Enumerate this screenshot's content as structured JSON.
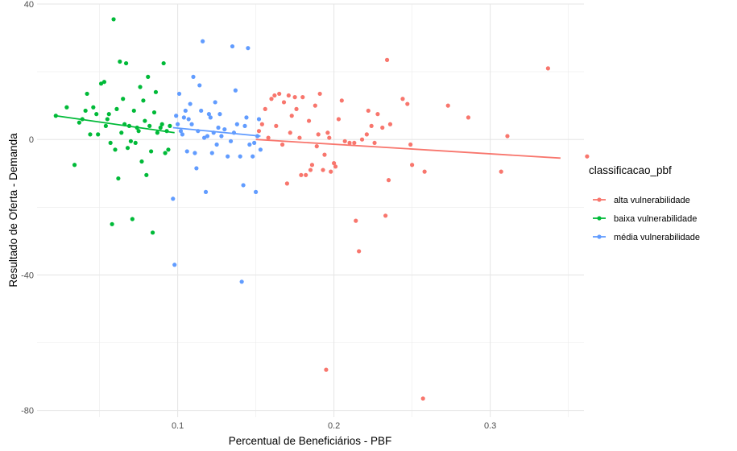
{
  "chart_data": {
    "type": "scatter",
    "title": "",
    "xlabel": "Percentual de Beneficiários - PBF",
    "ylabel": "Resultado de Oferta - Demanda",
    "xlim": [
      0.01,
      0.36
    ],
    "ylim": [
      -82,
      40
    ],
    "x_ticks": [
      0.1,
      0.2,
      0.3
    ],
    "x_tick_labels": [
      "0.1",
      "0.2",
      "0.3"
    ],
    "y_ticks": [
      40,
      0,
      -40,
      -80
    ],
    "y_tick_labels": [
      "40",
      "0",
      "-40",
      "-80"
    ],
    "grid": true,
    "legend": {
      "title": "classificacao_pbf",
      "position": "right"
    },
    "series": [
      {
        "name": "alta vulnerabilidade",
        "color": "#F8766D",
        "trend": {
          "x": [
            0.15,
            0.345
          ],
          "y": [
            0.0,
            -5.5
          ]
        },
        "points": [
          [
            0.152,
            2.5
          ],
          [
            0.154,
            4.5
          ],
          [
            0.156,
            9.0
          ],
          [
            0.158,
            0.5
          ],
          [
            0.16,
            12.0
          ],
          [
            0.162,
            13.0
          ],
          [
            0.163,
            4.0
          ],
          [
            0.165,
            13.5
          ],
          [
            0.167,
            -1.5
          ],
          [
            0.168,
            11.0
          ],
          [
            0.17,
            -13.0
          ],
          [
            0.171,
            13.0
          ],
          [
            0.172,
            2.0
          ],
          [
            0.173,
            7.0
          ],
          [
            0.175,
            12.5
          ],
          [
            0.176,
            9.0
          ],
          [
            0.178,
            0.5
          ],
          [
            0.179,
            -10.5
          ],
          [
            0.18,
            12.5
          ],
          [
            0.182,
            -10.5
          ],
          [
            0.184,
            5.5
          ],
          [
            0.185,
            -9.0
          ],
          [
            0.186,
            -7.5
          ],
          [
            0.188,
            10.0
          ],
          [
            0.189,
            -2.0
          ],
          [
            0.19,
            1.5
          ],
          [
            0.191,
            13.5
          ],
          [
            0.193,
            -9.0
          ],
          [
            0.194,
            -4.5
          ],
          [
            0.195,
            -68.0
          ],
          [
            0.196,
            2.0
          ],
          [
            0.197,
            0.5
          ],
          [
            0.198,
            -9.5
          ],
          [
            0.2,
            -7.0
          ],
          [
            0.201,
            -8.0
          ],
          [
            0.203,
            6.0
          ],
          [
            0.205,
            11.5
          ],
          [
            0.207,
            -0.5
          ],
          [
            0.21,
            -1.0
          ],
          [
            0.213,
            -1.0
          ],
          [
            0.214,
            -24.0
          ],
          [
            0.216,
            -33.0
          ],
          [
            0.218,
            0.0
          ],
          [
            0.221,
            1.5
          ],
          [
            0.222,
            8.5
          ],
          [
            0.224,
            4.0
          ],
          [
            0.226,
            -1.0
          ],
          [
            0.228,
            7.5
          ],
          [
            0.231,
            3.5
          ],
          [
            0.233,
            -22.5
          ],
          [
            0.234,
            23.5
          ],
          [
            0.235,
            -12.0
          ],
          [
            0.236,
            4.5
          ],
          [
            0.244,
            12.0
          ],
          [
            0.247,
            10.5
          ],
          [
            0.249,
            -1.5
          ],
          [
            0.25,
            -7.5
          ],
          [
            0.257,
            -76.5
          ],
          [
            0.258,
            -9.5
          ],
          [
            0.273,
            10.0
          ],
          [
            0.286,
            6.5
          ],
          [
            0.307,
            -9.5
          ],
          [
            0.311,
            1.0
          ],
          [
            0.337,
            21.0
          ],
          [
            0.362,
            -5.0
          ]
        ]
      },
      {
        "name": "baixa vulnerabilidade",
        "color": "#00BA38",
        "trend": {
          "x": [
            0.022,
            0.098
          ],
          "y": [
            7.0,
            2.0
          ]
        },
        "points": [
          [
            0.022,
            7.0
          ],
          [
            0.029,
            9.5
          ],
          [
            0.034,
            -7.5
          ],
          [
            0.037,
            5.0
          ],
          [
            0.039,
            6.0
          ],
          [
            0.041,
            8.5
          ],
          [
            0.042,
            13.5
          ],
          [
            0.044,
            1.5
          ],
          [
            0.046,
            9.5
          ],
          [
            0.048,
            7.5
          ],
          [
            0.049,
            1.5
          ],
          [
            0.051,
            16.5
          ],
          [
            0.053,
            17.0
          ],
          [
            0.054,
            4.0
          ],
          [
            0.055,
            6.0
          ],
          [
            0.056,
            7.5
          ],
          [
            0.057,
            -1.0
          ],
          [
            0.058,
            -25.0
          ],
          [
            0.059,
            35.5
          ],
          [
            0.06,
            -3.0
          ],
          [
            0.061,
            9.0
          ],
          [
            0.062,
            -11.5
          ],
          [
            0.063,
            23.0
          ],
          [
            0.064,
            2.0
          ],
          [
            0.065,
            12.0
          ],
          [
            0.066,
            4.5
          ],
          [
            0.067,
            22.5
          ],
          [
            0.068,
            -2.5
          ],
          [
            0.069,
            4.0
          ],
          [
            0.07,
            -0.5
          ],
          [
            0.071,
            -23.5
          ],
          [
            0.072,
            8.5
          ],
          [
            0.073,
            -1.0
          ],
          [
            0.074,
            3.5
          ],
          [
            0.075,
            2.5
          ],
          [
            0.076,
            15.5
          ],
          [
            0.077,
            -6.5
          ],
          [
            0.078,
            11.5
          ],
          [
            0.079,
            5.5
          ],
          [
            0.08,
            -10.5
          ],
          [
            0.081,
            18.5
          ],
          [
            0.082,
            4.0
          ],
          [
            0.083,
            -3.5
          ],
          [
            0.084,
            -27.5
          ],
          [
            0.085,
            8.0
          ],
          [
            0.086,
            14.0
          ],
          [
            0.087,
            2.0
          ],
          [
            0.089,
            3.5
          ],
          [
            0.09,
            4.5
          ],
          [
            0.091,
            22.5
          ],
          [
            0.092,
            -4.0
          ],
          [
            0.093,
            2.5
          ],
          [
            0.094,
            -3.0
          ],
          [
            0.095,
            4.0
          ]
        ]
      },
      {
        "name": "média vulnerabilidade",
        "color": "#619CFF",
        "trend": {
          "x": [
            0.097,
            0.153
          ],
          "y": [
            3.5,
            1.0
          ]
        },
        "points": [
          [
            0.097,
            -17.5
          ],
          [
            0.098,
            -37.0
          ],
          [
            0.099,
            7.0
          ],
          [
            0.1,
            4.5
          ],
          [
            0.101,
            13.5
          ],
          [
            0.102,
            2.5
          ],
          [
            0.103,
            1.5
          ],
          [
            0.104,
            6.5
          ],
          [
            0.105,
            8.5
          ],
          [
            0.106,
            -3.5
          ],
          [
            0.107,
            6.0
          ],
          [
            0.108,
            10.5
          ],
          [
            0.109,
            4.5
          ],
          [
            0.11,
            18.5
          ],
          [
            0.111,
            -4.0
          ],
          [
            0.112,
            -8.5
          ],
          [
            0.113,
            2.5
          ],
          [
            0.114,
            16.0
          ],
          [
            0.115,
            8.5
          ],
          [
            0.116,
            29.0
          ],
          [
            0.117,
            0.5
          ],
          [
            0.118,
            -15.5
          ],
          [
            0.119,
            1.0
          ],
          [
            0.12,
            7.5
          ],
          [
            0.121,
            6.5
          ],
          [
            0.122,
            -4.0
          ],
          [
            0.123,
            2.0
          ],
          [
            0.124,
            11.0
          ],
          [
            0.125,
            -1.5
          ],
          [
            0.126,
            3.5
          ],
          [
            0.127,
            7.5
          ],
          [
            0.128,
            1.0
          ],
          [
            0.13,
            3.0
          ],
          [
            0.132,
            -5.0
          ],
          [
            0.134,
            -0.5
          ],
          [
            0.135,
            27.5
          ],
          [
            0.136,
            2.0
          ],
          [
            0.137,
            14.5
          ],
          [
            0.138,
            4.5
          ],
          [
            0.14,
            -5.0
          ],
          [
            0.141,
            -42.0
          ],
          [
            0.142,
            -13.5
          ],
          [
            0.143,
            4.0
          ],
          [
            0.144,
            6.5
          ],
          [
            0.145,
            27.0
          ],
          [
            0.146,
            -1.5
          ],
          [
            0.148,
            -5.0
          ],
          [
            0.149,
            -1.0
          ],
          [
            0.15,
            -15.5
          ],
          [
            0.151,
            1.0
          ],
          [
            0.152,
            6.0
          ],
          [
            0.153,
            -3.0
          ]
        ]
      }
    ]
  }
}
